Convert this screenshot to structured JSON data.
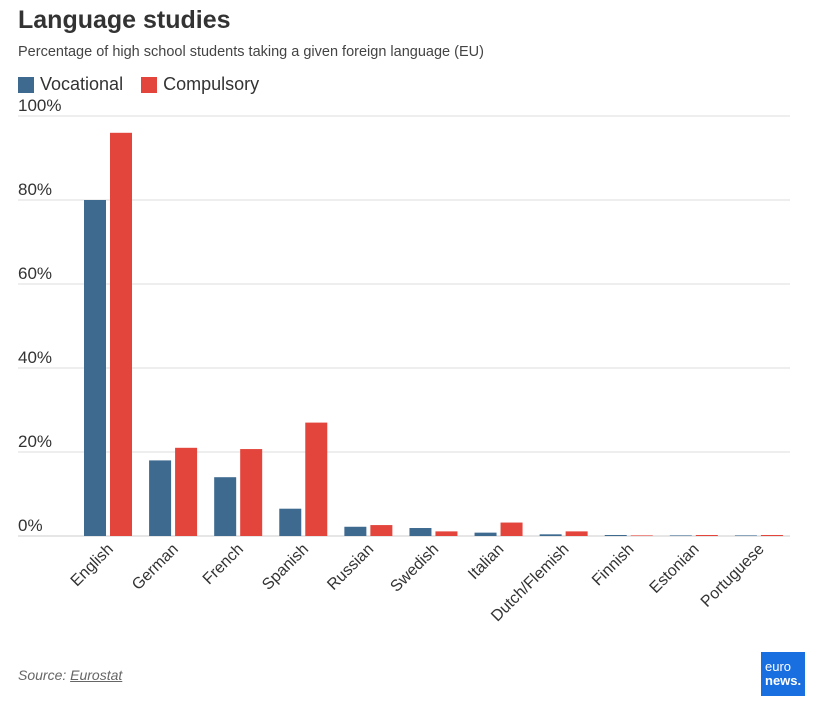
{
  "header": {
    "title": "Language studies",
    "subtitle": "Percentage of high school students taking a given foreign language (EU)"
  },
  "footer": {
    "source_prefix": "Source:",
    "source_link": "Eurostat",
    "logo_line1": "euro",
    "logo_line2": "news."
  },
  "colors": {
    "vocational": "#3e6a90",
    "compulsory": "#e3443b",
    "grid": "#dddddd",
    "text": "#333333"
  },
  "chart_data": {
    "type": "bar",
    "title": "Language studies",
    "subtitle": "Percentage of high school students taking a given foreign language (EU)",
    "categories": [
      "English",
      "German",
      "French",
      "Spanish",
      "Russian",
      "Swedish",
      "Italian",
      "Dutch/Flemish",
      "Finnish",
      "Estonian",
      "Portuguese"
    ],
    "series": [
      {
        "name": "Vocational",
        "values": [
          80,
          18,
          14,
          6.5,
          2.2,
          1.9,
          0.8,
          0.4,
          0.1,
          0.0,
          0.0
        ]
      },
      {
        "name": "Compulsory",
        "values": [
          96,
          21,
          20.7,
          27,
          2.6,
          1.1,
          3.2,
          1.1,
          0.0,
          0.2,
          0.2
        ]
      }
    ],
    "ylim": [
      0,
      100
    ],
    "yticks": [
      0,
      20,
      40,
      60,
      80,
      100
    ],
    "ytick_labels": [
      "0%",
      "20%",
      "40%",
      "60%",
      "80%",
      "100%"
    ],
    "grid": true,
    "legend_position": "top-left"
  }
}
